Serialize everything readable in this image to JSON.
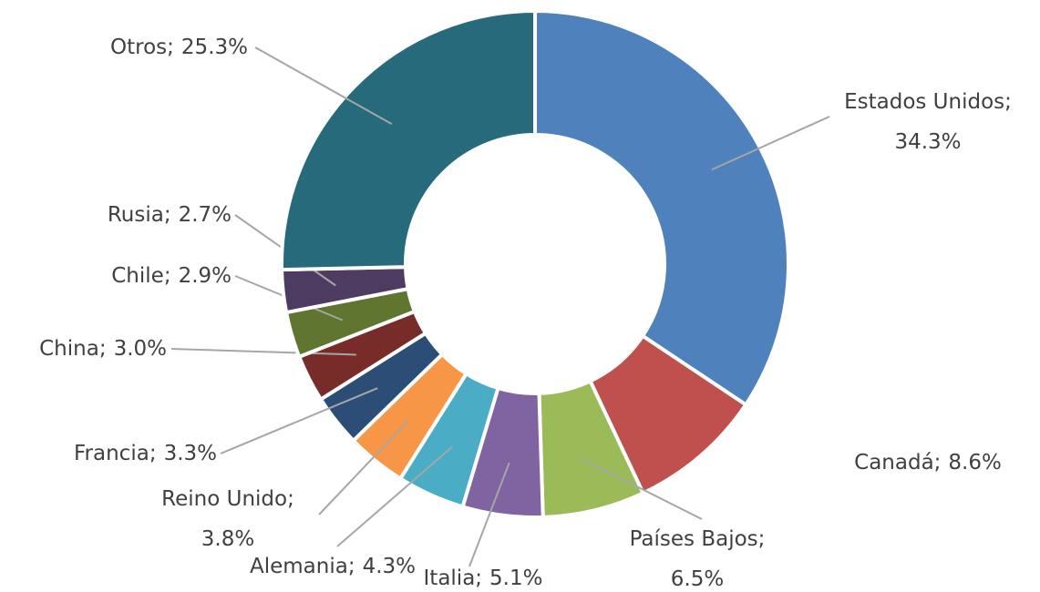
{
  "chart_data": {
    "type": "donut",
    "categories": [
      "Estados Unidos",
      "Canadá",
      "Países Bajos",
      "Italia",
      "Alemania",
      "Reino Unido",
      "Francia",
      "China",
      "Chile",
      "Rusia",
      "Otros"
    ],
    "values": [
      34.3,
      8.6,
      6.5,
      5.1,
      4.3,
      3.8,
      3.3,
      3.0,
      2.9,
      2.7,
      25.3
    ],
    "value_labels": [
      "34.3%",
      "8.6%",
      "6.5%",
      "5.1%",
      "4.3%",
      "3.8%",
      "3.3%",
      "3.0%",
      "2.9%",
      "2.7%",
      "25.3%"
    ],
    "label_separator": ";",
    "colors": [
      "#4f81bd",
      "#c0504d",
      "#9bbb59",
      "#8064a2",
      "#4bacc6",
      "#f79646",
      "#2c4d75",
      "#772c2a",
      "#5f7530",
      "#4d3b62",
      "#276a7c"
    ]
  }
}
